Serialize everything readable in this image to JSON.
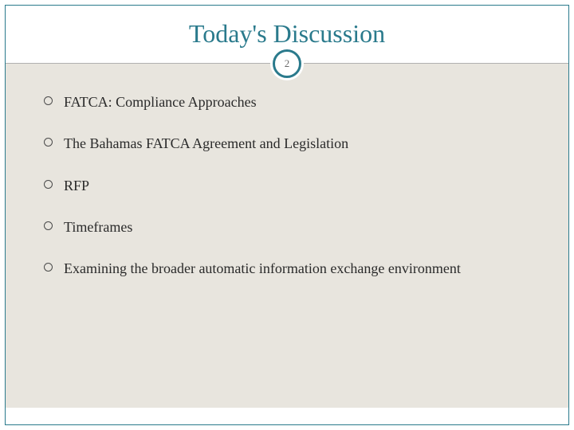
{
  "slide": {
    "title": "Today's Discussion",
    "page_number": "2",
    "title_color": "#2a7a8c",
    "border_color": "#2a7a8c",
    "content_bg": "#e8e5de",
    "title_fontsize": 32,
    "bullet_fontsize": 18,
    "bullets": [
      {
        "text": "FATCA: Compliance Approaches"
      },
      {
        "text": "The Bahamas FATCA Agreement and Legislation"
      },
      {
        "text": "RFP"
      },
      {
        "text": "Timeframes"
      },
      {
        "text": "Examining the broader automatic information exchange environment"
      }
    ]
  }
}
